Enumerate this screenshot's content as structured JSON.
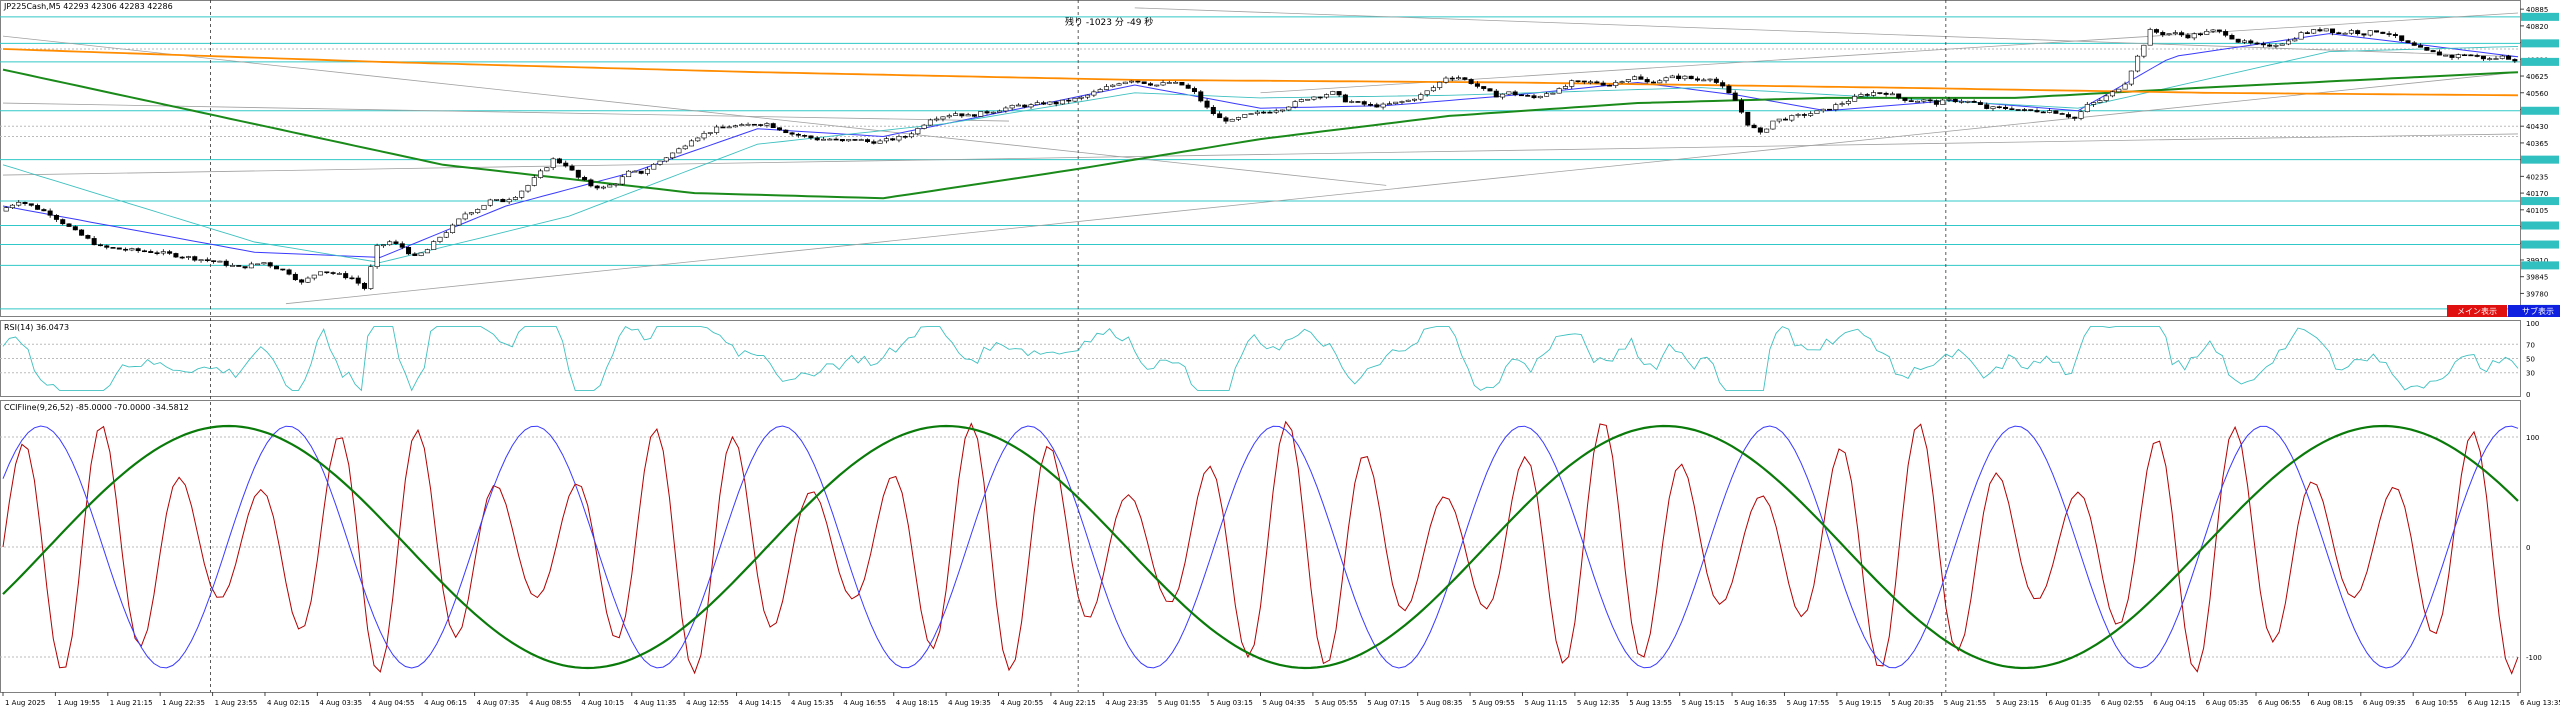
{
  "header": {
    "symbol_line": "JP225Cash,M5  42293 42306 42283 42286",
    "countdown": "残り -1023 分 -49 秒"
  },
  "buttons": {
    "main_label": "メイン表示",
    "sub_label": "サブ表示"
  },
  "indicators": {
    "rsi_label": "RSI(14) 36.0473",
    "cci_label": "CCIFline(9,26,52) -85.0000 -70.0000 -34.5812"
  },
  "colors": {
    "candle": "#000000",
    "ma_blue": "#3a3aff",
    "ma_cyan": "#40c0c0",
    "ma_green": "#1a8a1a",
    "ma_orange": "#ff8c00",
    "hline_cyan": "#30c8c8",
    "trend_gray": "#a0a0a0",
    "osc_red": "#b00000",
    "osc_blue": "#3a3aff",
    "osc_green": "#0a7a0a",
    "price_tag": "#30c0c0"
  },
  "chart_data": {
    "type": "candlestick",
    "symbol": "JP225Cash",
    "timeframe": "M5",
    "ohlc_last": {
      "open": 42293,
      "high": 42306,
      "low": 42283,
      "close": 42286
    },
    "price_axis": {
      "ticks": [
        40885,
        40820,
        40755,
        40690,
        40625,
        40560,
        40495,
        40430,
        40365,
        40300,
        40235,
        40170,
        40105,
        40040,
        39975,
        39910,
        39845,
        39780,
        39715
      ],
      "range": [
        39700,
        40905
      ]
    },
    "x_ticks": [
      "1 Aug 2025",
      "1 Aug 19:55",
      "1 Aug 21:15",
      "1 Aug 22:35",
      "1 Aug 23:55",
      "4 Aug 02:15",
      "4 Aug 03:35",
      "4 Aug 04:55",
      "4 Aug 06:15",
      "4 Aug 07:35",
      "4 Aug 08:55",
      "4 Aug 10:15",
      "4 Aug 11:35",
      "4 Aug 12:55",
      "4 Aug 14:15",
      "4 Aug 15:35",
      "4 Aug 16:55",
      "4 Aug 18:15",
      "4 Aug 19:35",
      "4 Aug 20:55",
      "4 Aug 22:15",
      "4 Aug 23:35",
      "5 Aug 01:55",
      "5 Aug 03:15",
      "5 Aug 04:35",
      "5 Aug 05:55",
      "5 Aug 07:15",
      "5 Aug 08:35",
      "5 Aug 09:55",
      "5 Aug 11:15",
      "5 Aug 12:35",
      "5 Aug 13:55",
      "5 Aug 15:15",
      "5 Aug 16:35",
      "5 Aug 17:55",
      "5 Aug 19:15",
      "5 Aug 20:35",
      "5 Aug 21:55",
      "5 Aug 23:15",
      "6 Aug 01:35",
      "6 Aug 02:55",
      "6 Aug 04:15",
      "6 Aug 05:35",
      "6 Aug 06:55",
      "6 Aug 08:15",
      "6 Aug 09:35",
      "6 Aug 10:55",
      "6 Aug 12:15",
      "6 Aug 13:35"
    ],
    "price_path": [
      [
        0,
        40100
      ],
      [
        3,
        40140
      ],
      [
        8,
        40090
      ],
      [
        12,
        40020
      ],
      [
        16,
        39960
      ],
      [
        20,
        39950
      ],
      [
        25,
        39940
      ],
      [
        30,
        39920
      ],
      [
        35,
        39900
      ],
      [
        38,
        39880
      ],
      [
        42,
        39900
      ],
      [
        46,
        39860
      ],
      [
        48,
        39820
      ],
      [
        51,
        39870
      ],
      [
        56,
        39840
      ],
      [
        58,
        39800
      ],
      [
        60,
        39960
      ],
      [
        62,
        39980
      ],
      [
        64,
        39960
      ],
      [
        66,
        39920
      ],
      [
        68,
        39950
      ],
      [
        70,
        40000
      ],
      [
        72,
        40040
      ],
      [
        74,
        40090
      ],
      [
        76,
        40110
      ],
      [
        78,
        40140
      ],
      [
        80,
        40140
      ],
      [
        82,
        40160
      ],
      [
        84,
        40200
      ],
      [
        86,
        40250
      ],
      [
        88,
        40300
      ],
      [
        90,
        40280
      ],
      [
        92,
        40230
      ],
      [
        94,
        40200
      ],
      [
        96,
        40190
      ],
      [
        98,
        40210
      ],
      [
        100,
        40250
      ],
      [
        102,
        40250
      ],
      [
        104,
        40280
      ],
      [
        106,
        40310
      ],
      [
        108,
        40340
      ],
      [
        110,
        40380
      ],
      [
        112,
        40400
      ],
      [
        114,
        40420
      ],
      [
        116,
        40430
      ],
      [
        118,
        40430
      ],
      [
        120,
        40440
      ],
      [
        122,
        40440
      ],
      [
        124,
        40420
      ],
      [
        126,
        40400
      ],
      [
        128,
        40390
      ],
      [
        130,
        40380
      ],
      [
        132,
        40380
      ],
      [
        134,
        40370
      ],
      [
        136,
        40380
      ],
      [
        138,
        40370
      ],
      [
        140,
        40370
      ],
      [
        142,
        40380
      ],
      [
        144,
        40390
      ],
      [
        146,
        40420
      ],
      [
        148,
        40460
      ],
      [
        150,
        40470
      ],
      [
        152,
        40480
      ],
      [
        154,
        40470
      ],
      [
        156,
        40480
      ],
      [
        158,
        40490
      ],
      [
        160,
        40500
      ],
      [
        162,
        40510
      ],
      [
        164,
        40510
      ],
      [
        166,
        40520
      ],
      [
        168,
        40520
      ],
      [
        170,
        40530
      ],
      [
        172,
        40540
      ],
      [
        174,
        40560
      ],
      [
        176,
        40580
      ],
      [
        178,
        40600
      ],
      [
        180,
        40610
      ],
      [
        182,
        40600
      ],
      [
        184,
        40590
      ],
      [
        186,
        40600
      ],
      [
        188,
        40590
      ],
      [
        190,
        40560
      ],
      [
        192,
        40500
      ],
      [
        194,
        40460
      ],
      [
        196,
        40450
      ],
      [
        198,
        40470
      ],
      [
        200,
        40480
      ],
      [
        202,
        40490
      ],
      [
        204,
        40500
      ],
      [
        206,
        40520
      ],
      [
        208,
        40540
      ],
      [
        210,
        40550
      ],
      [
        212,
        40560
      ],
      [
        214,
        40530
      ],
      [
        216,
        40520
      ],
      [
        218,
        40510
      ],
      [
        220,
        40510
      ],
      [
        222,
        40520
      ],
      [
        224,
        40530
      ],
      [
        226,
        40550
      ],
      [
        228,
        40580
      ],
      [
        230,
        40620
      ],
      [
        232,
        40620
      ],
      [
        234,
        40600
      ],
      [
        236,
        40570
      ],
      [
        238,
        40550
      ],
      [
        240,
        40560
      ],
      [
        242,
        40550
      ],
      [
        244,
        40540
      ],
      [
        246,
        40560
      ],
      [
        248,
        40570
      ],
      [
        250,
        40600
      ],
      [
        252,
        40600
      ],
      [
        254,
        40600
      ],
      [
        256,
        40590
      ],
      [
        258,
        40610
      ],
      [
        260,
        40620
      ],
      [
        262,
        40600
      ],
      [
        264,
        40610
      ],
      [
        266,
        40620
      ],
      [
        268,
        40620
      ],
      [
        270,
        40610
      ],
      [
        272,
        40620
      ],
      [
        274,
        40580
      ],
      [
        276,
        40530
      ],
      [
        278,
        40440
      ],
      [
        280,
        40400
      ],
      [
        282,
        40450
      ],
      [
        284,
        40460
      ],
      [
        286,
        40470
      ],
      [
        288,
        40480
      ],
      [
        290,
        40490
      ],
      [
        292,
        40510
      ],
      [
        294,
        40530
      ],
      [
        296,
        40550
      ],
      [
        298,
        40560
      ],
      [
        300,
        40560
      ],
      [
        302,
        40540
      ],
      [
        304,
        40530
      ],
      [
        306,
        40530
      ],
      [
        308,
        40520
      ],
      [
        310,
        40530
      ],
      [
        312,
        40530
      ],
      [
        314,
        40520
      ],
      [
        316,
        40500
      ],
      [
        318,
        40500
      ],
      [
        320,
        40500
      ],
      [
        322,
        40490
      ],
      [
        324,
        40490
      ],
      [
        326,
        40490
      ],
      [
        328,
        40480
      ],
      [
        330,
        40460
      ],
      [
        332,
        40510
      ],
      [
        334,
        40530
      ],
      [
        336,
        40560
      ],
      [
        338,
        40600
      ],
      [
        340,
        40700
      ],
      [
        342,
        40800
      ],
      [
        344,
        40790
      ],
      [
        346,
        40790
      ],
      [
        348,
        40780
      ],
      [
        350,
        40790
      ],
      [
        352,
        40800
      ],
      [
        354,
        40790
      ],
      [
        356,
        40760
      ],
      [
        358,
        40750
      ],
      [
        360,
        40740
      ],
      [
        362,
        40750
      ],
      [
        364,
        40760
      ],
      [
        366,
        40790
      ],
      [
        368,
        40800
      ],
      [
        370,
        40810
      ],
      [
        372,
        40790
      ],
      [
        374,
        40800
      ],
      [
        376,
        40790
      ],
      [
        378,
        40800
      ],
      [
        380,
        40790
      ],
      [
        382,
        40760
      ],
      [
        384,
        40740
      ],
      [
        386,
        40720
      ],
      [
        388,
        40710
      ],
      [
        390,
        40700
      ],
      [
        392,
        40710
      ],
      [
        394,
        40700
      ],
      [
        396,
        40690
      ],
      [
        398,
        40700
      ],
      [
        400,
        40690
      ]
    ],
    "moving_averages": [
      {
        "type": "line",
        "role": "fast",
        "points": [
          [
            0,
            40120
          ],
          [
            40,
            39940
          ],
          [
            60,
            39920
          ],
          [
            80,
            40120
          ],
          [
            100,
            40250
          ],
          [
            120,
            40420
          ],
          [
            140,
            40390
          ],
          [
            160,
            40490
          ],
          [
            180,
            40590
          ],
          [
            200,
            40500
          ],
          [
            220,
            40510
          ],
          [
            240,
            40550
          ],
          [
            260,
            40600
          ],
          [
            276,
            40550
          ],
          [
            290,
            40490
          ],
          [
            310,
            40530
          ],
          [
            330,
            40490
          ],
          [
            345,
            40700
          ],
          [
            370,
            40790
          ],
          [
            400,
            40700
          ]
        ]
      },
      {
        "type": "line",
        "role": "medium",
        "points": [
          [
            0,
            40280
          ],
          [
            40,
            39980
          ],
          [
            60,
            39900
          ],
          [
            90,
            40080
          ],
          [
            120,
            40360
          ],
          [
            150,
            40440
          ],
          [
            180,
            40560
          ],
          [
            200,
            40540
          ],
          [
            230,
            40550
          ],
          [
            270,
            40580
          ],
          [
            300,
            40540
          ],
          [
            330,
            40500
          ],
          [
            350,
            40610
          ],
          [
            370,
            40720
          ],
          [
            400,
            40740
          ]
        ]
      },
      {
        "type": "line",
        "role": "slow",
        "points": [
          [
            0,
            40650
          ],
          [
            70,
            40280
          ],
          [
            110,
            40170
          ],
          [
            140,
            40150
          ],
          [
            170,
            40260
          ],
          [
            200,
            40380
          ],
          [
            230,
            40470
          ],
          [
            260,
            40520
          ],
          [
            290,
            40540
          ],
          [
            320,
            40540
          ],
          [
            350,
            40580
          ],
          [
            400,
            40640
          ]
        ]
      },
      {
        "type": "line",
        "role": "long",
        "points": [
          [
            0,
            40730
          ],
          [
            60,
            40680
          ],
          [
            120,
            40640
          ],
          [
            180,
            40610
          ],
          [
            240,
            40600
          ],
          [
            300,
            40580
          ],
          [
            350,
            40560
          ],
          [
            400,
            40550
          ]
        ]
      }
    ],
    "horizontal_levels": [
      40855,
      40752,
      40680,
      40490,
      40300,
      40139,
      40044,
      39970,
      39889,
      39720
    ],
    "rsi": {
      "name": "RSI(14)",
      "value": 36.0473,
      "levels": [
        70,
        50,
        30
      ],
      "axis": [
        100,
        70,
        50,
        30,
        0
      ]
    },
    "cci": {
      "name": "CCIFline(9,26,52)",
      "values": [
        -85.0,
        -70.0,
        -34.5812
      ],
      "axis": [
        100,
        0,
        -100
      ]
    }
  }
}
